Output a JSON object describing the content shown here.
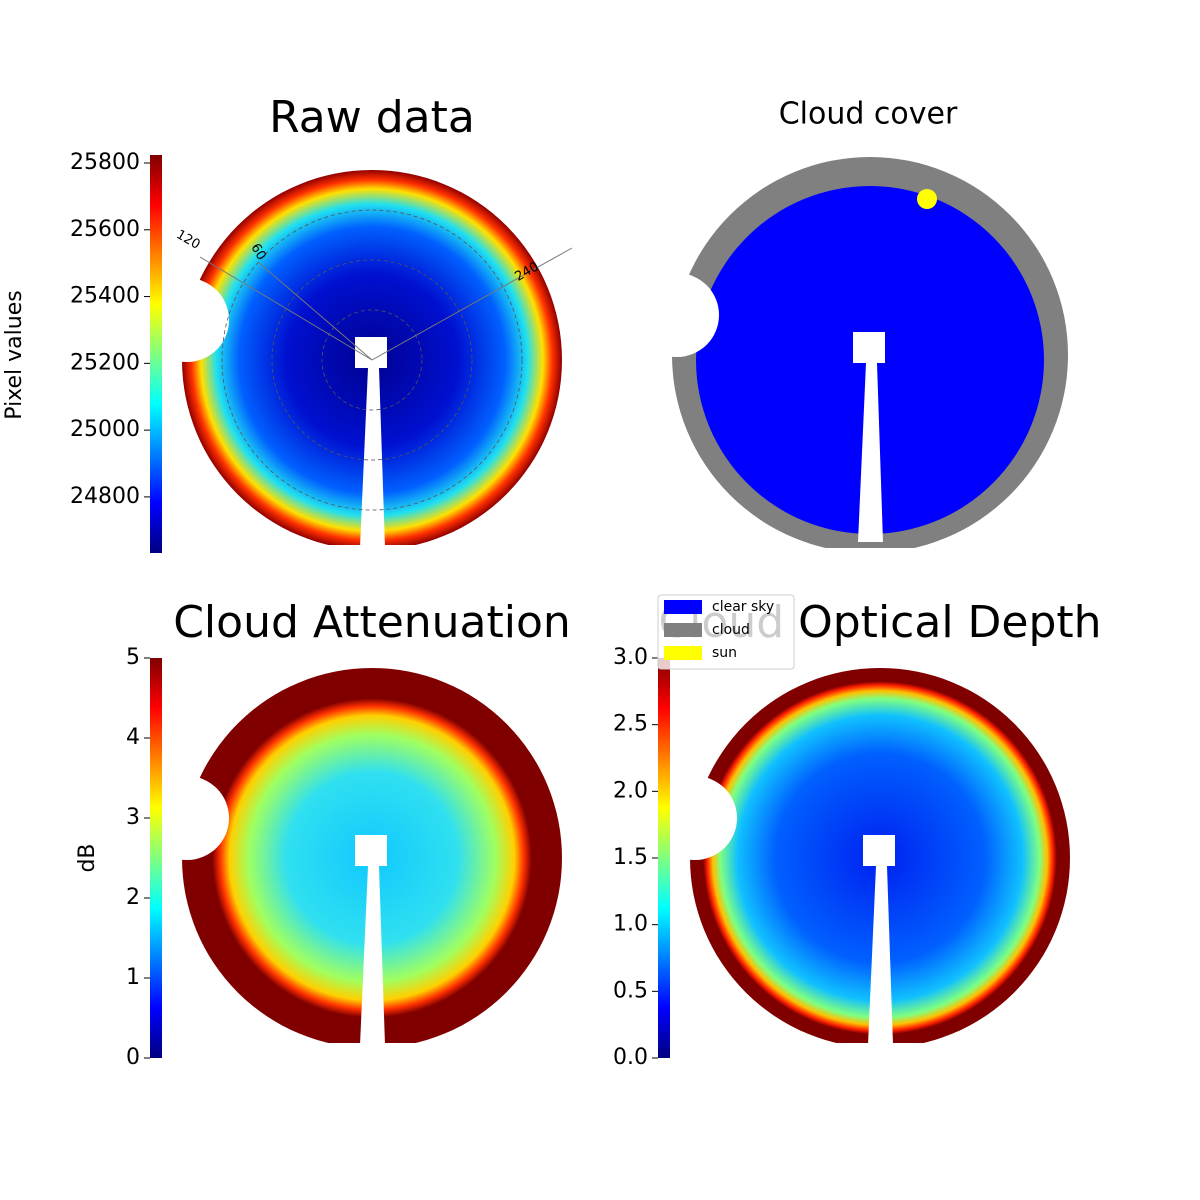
{
  "chart_data": [
    {
      "type": "image",
      "title": "Raw data",
      "colorbar": {
        "label": "Pixel values",
        "colormap": "jet",
        "lim": [
          24632,
          25824
        ],
        "ticks": [
          24800,
          25000,
          25200,
          25400,
          25600,
          25800
        ]
      },
      "polar_labels": [
        "120",
        "60",
        "240"
      ]
    },
    {
      "type": "image",
      "title": "Cloud cover",
      "legend": [
        {
          "name": "clear sky",
          "color": "#0000ff"
        },
        {
          "name": "cloud",
          "color": "#808080"
        },
        {
          "name": "sun",
          "color": "#ffff00"
        }
      ]
    },
    {
      "type": "image",
      "title": "Cloud Attenuation",
      "colorbar": {
        "label": "dB",
        "colormap": "jet",
        "lim": [
          0,
          5
        ],
        "ticks": [
          0,
          1,
          2,
          3,
          4,
          5
        ]
      }
    },
    {
      "type": "image",
      "title": "Cloud Optical Depth",
      "colorbar": {
        "colormap": "jet",
        "lim": [
          0,
          3
        ],
        "ticks": [
          {
            "value": 0,
            "label": "0.0"
          },
          {
            "value": 0.5,
            "label": "0.5"
          },
          {
            "value": 1,
            "label": "1.0"
          },
          {
            "value": 1.5,
            "label": "1.5"
          },
          {
            "value": 2,
            "label": "2.0"
          },
          {
            "value": 2.5,
            "label": "2.5"
          },
          {
            "value": 3,
            "label": "3.0"
          }
        ]
      }
    }
  ]
}
